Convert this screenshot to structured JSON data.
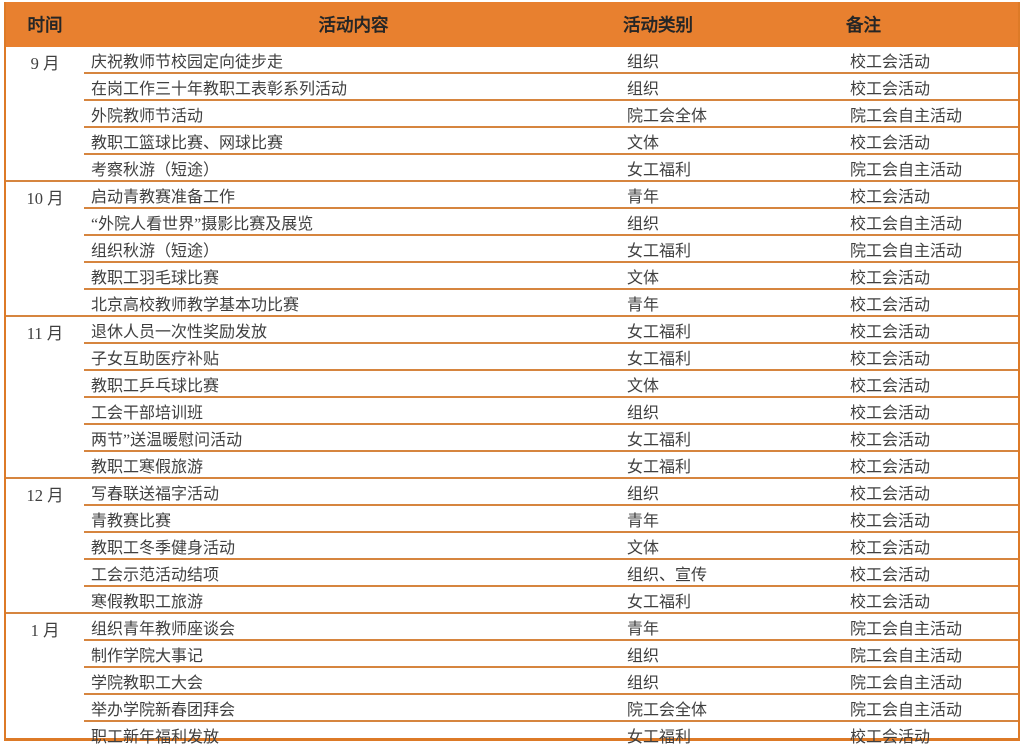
{
  "table": {
    "columns": [
      {
        "key": "time",
        "label": "时间"
      },
      {
        "key": "content",
        "label": "活动内容"
      },
      {
        "key": "category",
        "label": "活动类别"
      },
      {
        "key": "remark",
        "label": "备注"
      }
    ],
    "groups": [
      {
        "month": "9 月",
        "rows": [
          {
            "content": "庆祝教师节校园定向徒步走",
            "category": "组织",
            "remark": "校工会活动"
          },
          {
            "content": "在岗工作三十年教职工表彰系列活动",
            "category": "组织",
            "remark": "校工会活动"
          },
          {
            "content": "外院教师节活动",
            "category": "院工会全体",
            "remark": "院工会自主活动"
          },
          {
            "content": "教职工篮球比赛、网球比赛",
            "category": "文体",
            "remark": "校工会活动"
          },
          {
            "content": "考察秋游（短途）",
            "category": "女工福利",
            "remark": "院工会自主活动"
          }
        ]
      },
      {
        "month": "10 月",
        "rows": [
          {
            "content": "启动青教赛准备工作",
            "category": "青年",
            "remark": "校工会活动"
          },
          {
            "content": "“外院人看世界”摄影比赛及展览",
            "category": "组织",
            "remark": "校工会自主活动"
          },
          {
            "content": "组织秋游（短途）",
            "category": "女工福利",
            "remark": "院工会自主活动"
          },
          {
            "content": "教职工羽毛球比赛",
            "category": "文体",
            "remark": "校工会活动"
          },
          {
            "content": "北京高校教师教学基本功比赛",
            "category": "青年",
            "remark": "校工会活动"
          }
        ]
      },
      {
        "month": "11 月",
        "rows": [
          {
            "content": "退休人员一次性奖励发放",
            "category": "女工福利",
            "remark": "校工会活动"
          },
          {
            "content": "子女互助医疗补贴",
            "category": "女工福利",
            "remark": "校工会活动"
          },
          {
            "content": "教职工乒乓球比赛",
            "category": "文体",
            "remark": "校工会活动"
          },
          {
            "content": "工会干部培训班",
            "category": "组织",
            "remark": "校工会活动"
          },
          {
            "content": "两节”送温暖慰问活动",
            "category": "女工福利",
            "remark": "校工会活动"
          },
          {
            "content": "教职工寒假旅游",
            "category": "女工福利",
            "remark": "校工会活动"
          }
        ]
      },
      {
        "month": "12 月",
        "rows": [
          {
            "content": "写春联送福字活动",
            "category": "组织",
            "remark": "校工会活动"
          },
          {
            "content": "青教赛比赛",
            "category": "青年",
            "remark": "校工会活动"
          },
          {
            "content": "教职工冬季健身活动",
            "category": "文体",
            "remark": "校工会活动"
          },
          {
            "content": "工会示范活动结项",
            "category": "组织、宣传",
            "remark": "校工会活动"
          },
          {
            "content": "寒假教职工旅游",
            "category": "女工福利",
            "remark": "校工会活动"
          }
        ]
      },
      {
        "month": "1 月",
        "rows": [
          {
            "content": "组织青年教师座谈会",
            "category": "青年",
            "remark": "院工会自主活动"
          },
          {
            "content": "制作学院大事记",
            "category": "组织",
            "remark": "院工会自主活动"
          },
          {
            "content": "学院教职工大会",
            "category": "组织",
            "remark": "院工会自主活动"
          },
          {
            "content": "举办学院新春团拜会",
            "category": "院工会全体",
            "remark": "院工会自主活动"
          },
          {
            "content": "职工新年福利发放",
            "category": "女工福利",
            "remark": "校工会活动"
          }
        ]
      }
    ]
  },
  "colors": {
    "header_bg": "#E8802F",
    "row_line": "#D6853F",
    "outer_border": "#DD7A27",
    "header_text": "#262626",
    "body_text": "#3F3F3F"
  }
}
